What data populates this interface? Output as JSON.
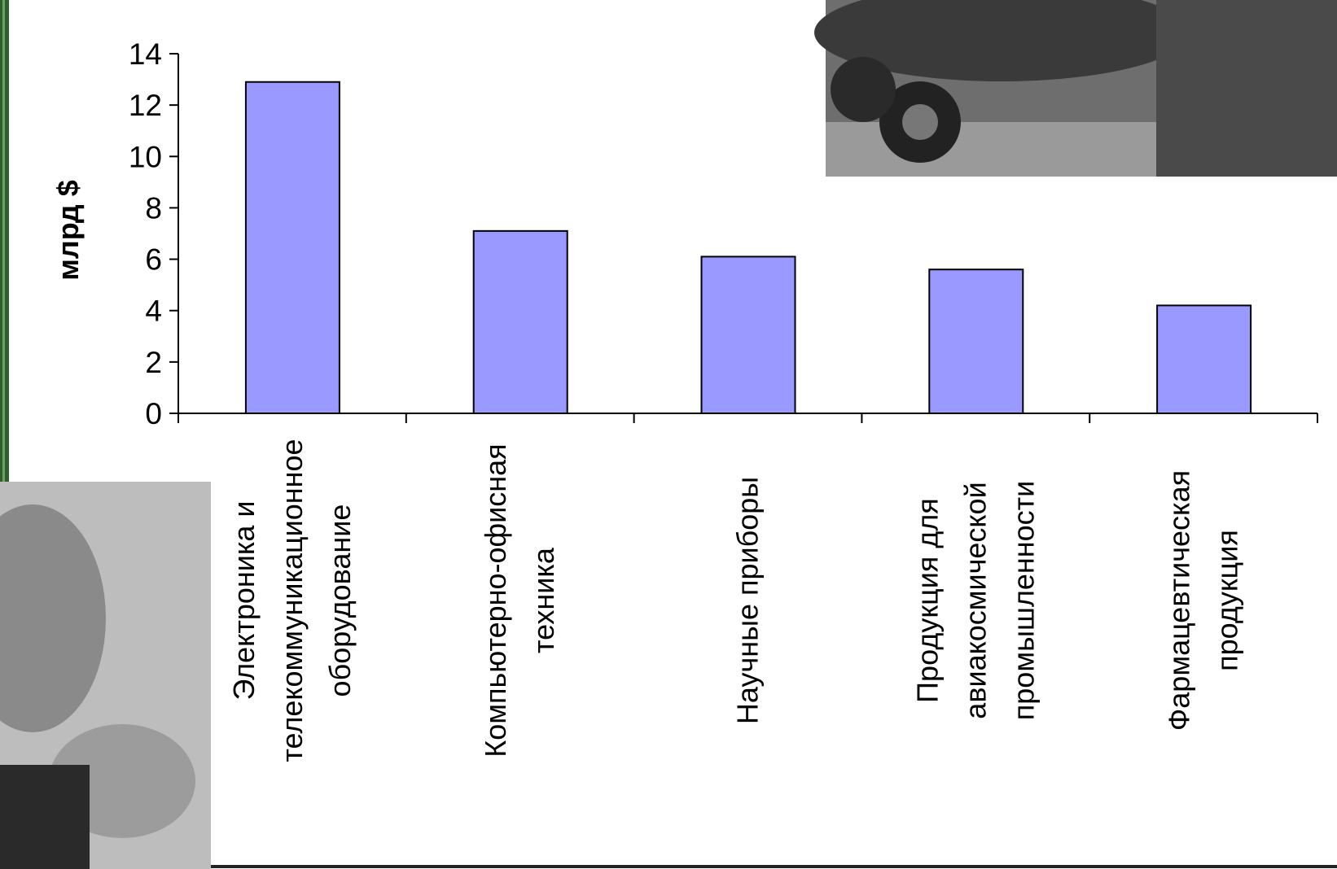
{
  "chart_data": {
    "type": "bar",
    "y_label": "млрд $",
    "categories": [
      "Электроника и\nтелекоммуникационное\nоборудование",
      "Компьютерно-офисная\nтехника",
      "Научные приборы",
      "Продукция для\nавиакосмической\nпромышленности",
      "Фармацевтическая\nпродукция"
    ],
    "values": [
      12.9,
      7.1,
      6.1,
      5.6,
      4.2
    ],
    "color": "#9999ff",
    "ylim": [
      0,
      14
    ],
    "yticks": [
      0,
      2,
      4,
      6,
      8,
      10,
      12,
      14
    ],
    "grid": false
  }
}
